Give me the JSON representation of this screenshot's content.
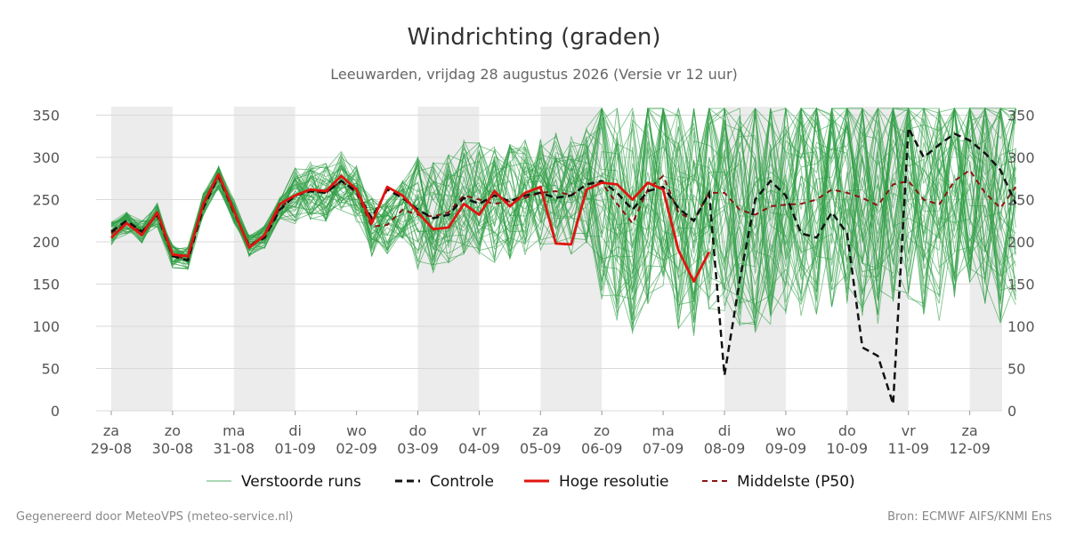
{
  "chart_data": {
    "type": "line",
    "title": "Windrichting (graden)",
    "subtitle": "Leeuwarden, vrijdag 28 augustus 2026 (Versie vr 12 uur)",
    "ylim": [
      0,
      360
    ],
    "yticks": [
      0,
      50,
      100,
      150,
      200,
      250,
      300,
      350
    ],
    "x_range_days": [
      0.0,
      15.0
    ],
    "x_ticks": [
      {
        "day": "za",
        "date": "29-08"
      },
      {
        "day": "zo",
        "date": "30-08"
      },
      {
        "day": "ma",
        "date": "31-08"
      },
      {
        "day": "di",
        "date": "01-09"
      },
      {
        "day": "wo",
        "date": "02-09"
      },
      {
        "day": "do",
        "date": "03-09"
      },
      {
        "day": "vr",
        "date": "04-09"
      },
      {
        "day": "za",
        "date": "05-09"
      },
      {
        "day": "zo",
        "date": "06-09"
      },
      {
        "day": "ma",
        "date": "07-09"
      },
      {
        "day": "di",
        "date": "08-09"
      },
      {
        "day": "wo",
        "date": "09-09"
      },
      {
        "day": "do",
        "date": "10-09"
      },
      {
        "day": "vr",
        "date": "11-09"
      },
      {
        "day": "za",
        "date": "12-09"
      }
    ],
    "grid": true,
    "legend_position": "bottom",
    "shaded_periods": [
      "zaterdag",
      "zondag"
    ],
    "colors": {
      "ensemble": "#2e9e44",
      "control": "#111111",
      "high_res": "#e0140f",
      "median": "#8b1414",
      "weekend_band": "#ececec",
      "grid": "#d9d9d9"
    },
    "legend": {
      "ensemble": "Verstoorde runs",
      "control": "Controle",
      "high_res": "Hoge resolutie",
      "median": "Middelste (P50)"
    },
    "series_hoge_resolutie": {
      "x": [
        0.0,
        0.25,
        0.5,
        0.75,
        1.0,
        1.25,
        1.5,
        1.75,
        2.0,
        2.25,
        2.5,
        2.75,
        3.0,
        3.25,
        3.5,
        3.75,
        4.0,
        4.25,
        4.5,
        4.75,
        5.0,
        5.25,
        5.5,
        5.75,
        6.0,
        6.25,
        6.5,
        6.75,
        7.0,
        7.25,
        7.5,
        7.75,
        8.0,
        8.25,
        8.5,
        8.75,
        9.0,
        9.25,
        9.5,
        9.75,
        10.0
      ],
      "y": [
        205,
        222,
        208,
        235,
        185,
        183,
        245,
        280,
        237,
        193,
        208,
        245,
        255,
        262,
        260,
        278,
        262,
        222,
        265,
        255,
        235,
        215,
        217,
        245,
        232,
        260,
        242,
        258,
        265,
        198,
        197,
        262,
        270,
        268,
        250,
        270,
        262,
        190,
        153,
        188,
        null
      ]
    },
    "series_controle": {
      "x": [
        0.0,
        0.25,
        0.5,
        0.75,
        1.0,
        1.25,
        1.5,
        1.75,
        2.0,
        2.25,
        2.5,
        2.75,
        3.0,
        3.25,
        3.5,
        3.75,
        4.0,
        4.25,
        4.5,
        4.75,
        5.0,
        5.25,
        5.5,
        5.75,
        6.0,
        6.25,
        6.5,
        6.75,
        7.0,
        7.25,
        7.5,
        7.75,
        8.0,
        8.25,
        8.5,
        8.75,
        9.0,
        9.25,
        9.5,
        9.75,
        10.0,
        10.25,
        10.5,
        10.75,
        11.0,
        11.25,
        11.5,
        11.75,
        12.0,
        12.25,
        12.5,
        12.75,
        13.0,
        13.25,
        13.5,
        13.75,
        14.0,
        14.25,
        14.5,
        14.75,
        15.0
      ],
      "y": [
        212,
        225,
        212,
        232,
        183,
        178,
        240,
        278,
        235,
        195,
        205,
        238,
        255,
        260,
        258,
        272,
        260,
        228,
        262,
        252,
        238,
        228,
        232,
        252,
        245,
        255,
        248,
        255,
        258,
        252,
        255,
        268,
        272,
        258,
        238,
        260,
        265,
        240,
        225,
        258,
        42,
        155,
        250,
        272,
        255,
        210,
        205,
        235,
        210,
        75,
        65,
        8,
        335,
        300,
        315,
        328,
        320,
        305,
        285,
        245,
        null
      ]
    },
    "series_middelste_p50": {
      "x": [
        0.0,
        0.25,
        0.5,
        0.75,
        1.0,
        1.25,
        1.5,
        1.75,
        2.0,
        2.25,
        2.5,
        2.75,
        3.0,
        3.25,
        3.5,
        3.75,
        4.0,
        4.25,
        4.5,
        4.75,
        5.0,
        5.25,
        5.5,
        5.75,
        6.0,
        6.25,
        6.5,
        6.75,
        7.0,
        7.25,
        7.5,
        7.75,
        8.0,
        8.25,
        8.5,
        8.75,
        9.0,
        9.25,
        9.5,
        9.75,
        10.0,
        10.25,
        10.5,
        10.75,
        11.0,
        11.25,
        11.5,
        11.75,
        12.0,
        12.25,
        12.5,
        12.75,
        13.0,
        13.25,
        13.5,
        13.75,
        14.0,
        14.25,
        14.5,
        14.75,
        15.0
      ],
      "y": [
        210,
        222,
        212,
        232,
        183,
        180,
        244,
        276,
        236,
        196,
        206,
        240,
        255,
        260,
        258,
        272,
        258,
        218,
        220,
        238,
        232,
        230,
        235,
        255,
        250,
        245,
        248,
        252,
        258,
        260,
        255,
        268,
        270,
        245,
        222,
        262,
        278,
        235,
        225,
        258,
        258,
        238,
        232,
        242,
        244,
        245,
        250,
        262,
        258,
        252,
        243,
        268,
        272,
        250,
        244,
        272,
        285,
        258,
        240,
        265,
        null
      ]
    }
  }
}
